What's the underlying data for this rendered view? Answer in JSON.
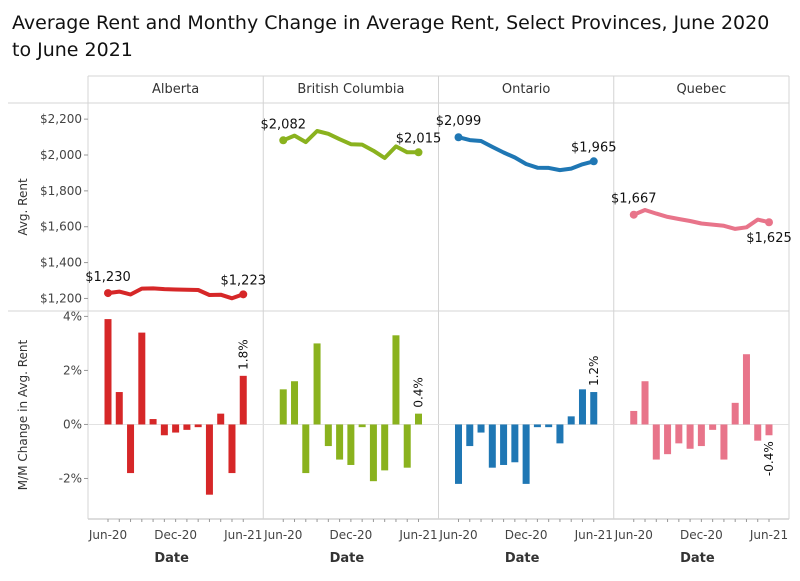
{
  "title": "Average Rent and Monthy Change in Average Rent, Select Provinces, June 2020 to June 2021",
  "chart_data": {
    "type": "line+bar (small multiples)",
    "dates": [
      "Jun-20",
      "Jul-20",
      "Aug-20",
      "Sep-20",
      "Oct-20",
      "Nov-20",
      "Dec-20",
      "Jan-21",
      "Feb-21",
      "Mar-21",
      "Apr-21",
      "May-21",
      "Jun-21"
    ],
    "x_tick_labels": [
      "Jun-20",
      "Dec-20",
      "Jun-21"
    ],
    "xlabel": "Date",
    "top_ylabel": "Avg. Rent",
    "top_yticks": [
      "$1,200",
      "$1,400",
      "$1,600",
      "$1,800",
      "$2,000",
      "$2,200"
    ],
    "top_ylim": [
      1130,
      2290
    ],
    "bottom_ylabel": "M/M Change in Avg. Rent",
    "bottom_yticks": [
      "-2%",
      "0%",
      "2%",
      "4%"
    ],
    "bottom_ylim": [
      -3.5,
      4.2
    ],
    "grid": false,
    "panels": [
      {
        "name": "Alberta",
        "color": "#d62728",
        "rent": [
          1230,
          1238,
          1222,
          1255,
          1256,
          1252,
          1250,
          1248,
          1247,
          1219,
          1221,
          1201,
          1223
        ],
        "rent_labels": {
          "first": "$1,230",
          "last": "$1,223"
        },
        "change": [
          3.9,
          1.2,
          -1.8,
          3.4,
          0.2,
          -0.4,
          -0.3,
          -0.2,
          -0.1,
          -2.6,
          0.4,
          -1.8,
          1.8
        ],
        "change_label": "1.8%"
      },
      {
        "name": "British Columbia",
        "color": "#8ab21e",
        "rent": [
          2082,
          2108,
          2072,
          2134,
          2118,
          2088,
          2060,
          2058,
          2024,
          1983,
          2048,
          2015,
          2015
        ],
        "rent_labels": {
          "first": "$2,082",
          "last": "$2,015"
        },
        "change": [
          1.3,
          1.6,
          -1.8,
          3.0,
          -0.8,
          -1.3,
          -1.5,
          -0.1,
          -2.1,
          -1.7,
          3.3,
          -1.6,
          0.4
        ],
        "change_label": "0.4%"
      },
      {
        "name": "Ontario",
        "color": "#1f77b4",
        "rent": [
          2099,
          2083,
          2078,
          2045,
          2014,
          1986,
          1950,
          1929,
          1928,
          1916,
          1924,
          1948,
          1965
        ],
        "rent_labels": {
          "first": "$2,099",
          "last": "$1,965"
        },
        "change": [
          -2.2,
          -0.8,
          -0.3,
          -1.6,
          -1.5,
          -1.4,
          -2.2,
          -0.1,
          -0.1,
          -0.7,
          0.3,
          1.3,
          1.2
        ],
        "change_label": "1.2%"
      },
      {
        "name": "Quebec",
        "color": "#e8748a",
        "rent": [
          1667,
          1693,
          1673,
          1655,
          1643,
          1632,
          1618,
          1612,
          1605,
          1588,
          1597,
          1640,
          1625
        ],
        "rent_labels": {
          "first": "$1,667",
          "last": "$1,625"
        },
        "change": [
          0.5,
          1.6,
          -1.3,
          -1.1,
          -0.7,
          -0.9,
          -0.8,
          -0.2,
          -1.3,
          0.8,
          2.6,
          -0.6,
          -0.4
        ],
        "change_label": "-0.4%"
      }
    ]
  }
}
